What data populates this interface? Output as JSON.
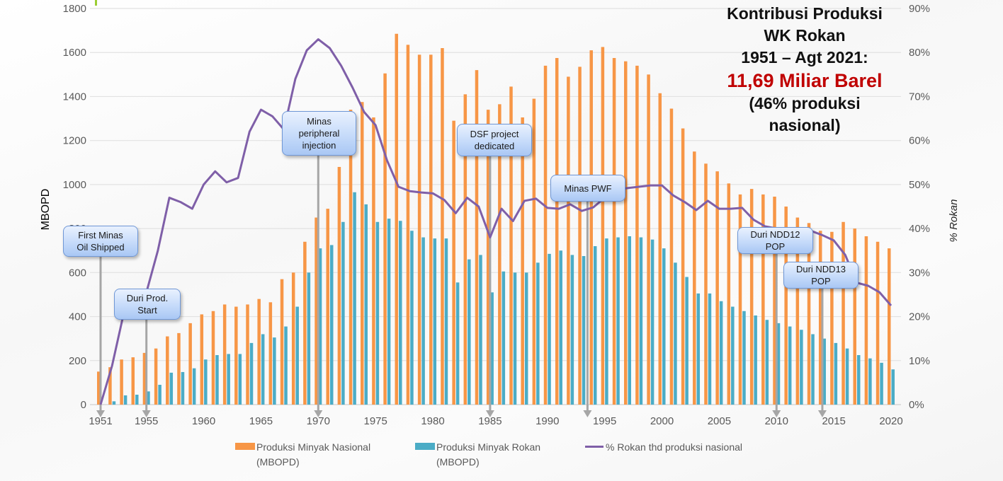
{
  "chart_data": {
    "type": "bar",
    "title": "Kontribusi Produksi WK Rokan 1951 – Agt 2021: 11,69 Miliar Barel (46% produksi nasional)",
    "xlabel": "",
    "ylabel": "MBOPD",
    "y2label": "% Rokan",
    "ylim": [
      0,
      1800
    ],
    "y2lim": [
      0,
      90
    ],
    "grid": true,
    "legend_position": "bottom",
    "y_ticks": [
      "0",
      "200",
      "400",
      "600",
      "800",
      "1000",
      "1200",
      "1400",
      "1600",
      "1800"
    ],
    "y2_ticks": [
      "0%",
      "10%",
      "20%",
      "30%",
      "40%",
      "50%",
      "60%",
      "70%",
      "80%",
      "90%"
    ],
    "x_tick_labels": [
      "1951",
      "1955",
      "1960",
      "1965",
      "1970",
      "1975",
      "1980",
      "1985",
      "1990",
      "1995",
      "2000",
      "2005",
      "2010",
      "2015",
      "2020"
    ],
    "x": [
      1951,
      1952,
      1953,
      1954,
      1955,
      1956,
      1957,
      1958,
      1959,
      1960,
      1961,
      1962,
      1963,
      1964,
      1965,
      1966,
      1967,
      1968,
      1969,
      1970,
      1971,
      1972,
      1973,
      1974,
      1975,
      1976,
      1977,
      1978,
      1979,
      1980,
      1981,
      1982,
      1983,
      1984,
      1985,
      1986,
      1987,
      1988,
      1989,
      1990,
      1991,
      1992,
      1993,
      1994,
      1995,
      1996,
      1997,
      1998,
      1999,
      2000,
      2001,
      2002,
      2003,
      2004,
      2005,
      2006,
      2007,
      2008,
      2009,
      2010,
      2011,
      2012,
      2013,
      2014,
      2015,
      2016,
      2017,
      2018,
      2019,
      2020
    ],
    "series": [
      {
        "name": "Produksi Minyak Nasional (MBOPD)",
        "type": "bar",
        "axis": "left",
        "color": "#f79646",
        "values": [
          150,
          170,
          205,
          215,
          235,
          255,
          310,
          325,
          370,
          410,
          425,
          455,
          445,
          455,
          480,
          465,
          570,
          600,
          740,
          850,
          890,
          1080,
          1340,
          1375,
          1305,
          1505,
          1685,
          1635,
          1590,
          1590,
          1620,
          1290,
          1410,
          1520,
          1340,
          1365,
          1445,
          1305,
          1390,
          1540,
          1575,
          1490,
          1535,
          1610,
          1625,
          1575,
          1560,
          1540,
          1500,
          1415,
          1345,
          1255,
          1150,
          1095,
          1060,
          1005,
          955,
          980,
          955,
          945,
          900,
          850,
          825,
          790,
          785,
          830,
          800,
          765,
          740,
          710
        ]
      },
      {
        "name": "Produksi Minyak  Rokan (MBOPD)",
        "type": "bar",
        "axis": "left",
        "color": "#4bacc6",
        "values": [
          0,
          15,
          42,
          45,
          60,
          90,
          145,
          148,
          165,
          205,
          225,
          230,
          230,
          280,
          320,
          305,
          355,
          445,
          600,
          710,
          725,
          830,
          965,
          910,
          830,
          845,
          835,
          790,
          760,
          755,
          755,
          555,
          660,
          680,
          510,
          605,
          600,
          600,
          645,
          685,
          700,
          680,
          675,
          720,
          755,
          760,
          765,
          760,
          750,
          710,
          645,
          580,
          505,
          505,
          470,
          445,
          425,
          405,
          385,
          370,
          355,
          340,
          320,
          300,
          280,
          255,
          225,
          210,
          190,
          160
        ]
      },
      {
        "name": "% Rokan thd produksi nasional",
        "type": "line",
        "axis": "right",
        "color": "#7f5fa8",
        "values": [
          0,
          8.8,
          20.5,
          21,
          25.5,
          35,
          47,
          46,
          44.5,
          50,
          53,
          50.5,
          51.5,
          62,
          67,
          65.5,
          62.5,
          74,
          80.5,
          83,
          81,
          77,
          72,
          66.5,
          63.5,
          55.5,
          49.5,
          48.5,
          48.2,
          48,
          46.5,
          43.5,
          47,
          45,
          38,
          44.5,
          41.7,
          46.3,
          46.8,
          44.7,
          44.5,
          45.5,
          44,
          44.8,
          47,
          48.8,
          49.2,
          49.5,
          49.8,
          49.8,
          47.5,
          46,
          44.2,
          46.3,
          44.5,
          44.5,
          44.7,
          42,
          40.5,
          40,
          39.2,
          39.5,
          39.5,
          38.5,
          37.3,
          34,
          27.7,
          27,
          25.5,
          22.5
        ]
      }
    ],
    "annotations": [
      {
        "id": "first-minas",
        "text": "First Minas\nOil Shipped",
        "year": 1951
      },
      {
        "id": "duri-prod",
        "text": "Duri Prod.\nStart",
        "year": 1955
      },
      {
        "id": "minas-peripheral",
        "text": "Minas\nperipheral\ninjection",
        "year": 1970
      },
      {
        "id": "dsf-project",
        "text": "DSF project\ndedicated",
        "year": 1985
      },
      {
        "id": "minas-pwf",
        "text": "Minas PWF",
        "year": 1993.5
      },
      {
        "id": "duri-ndd12",
        "text": "Duri NDD12\nPOP",
        "year": 2010
      },
      {
        "id": "duri-ndd13",
        "text": "Duri NDD13\nPOP",
        "year": 2014
      }
    ]
  },
  "headline": {
    "line1": "Kontribusi Produksi",
    "line2": "WK Rokan",
    "line3": "1951 – Agt 2021:",
    "highlight": "11,69 Miliar Barel",
    "line5": "(46% produksi",
    "line6": "nasional)"
  },
  "legend": {
    "nasional_line1": "Produksi Minyak Nasional",
    "nasional_line2": "(MBOPD)",
    "rokan_line1": "Produksi Minyak  Rokan",
    "rokan_line2": "(MBOPD)",
    "pct": "% Rokan thd produksi nasional"
  }
}
